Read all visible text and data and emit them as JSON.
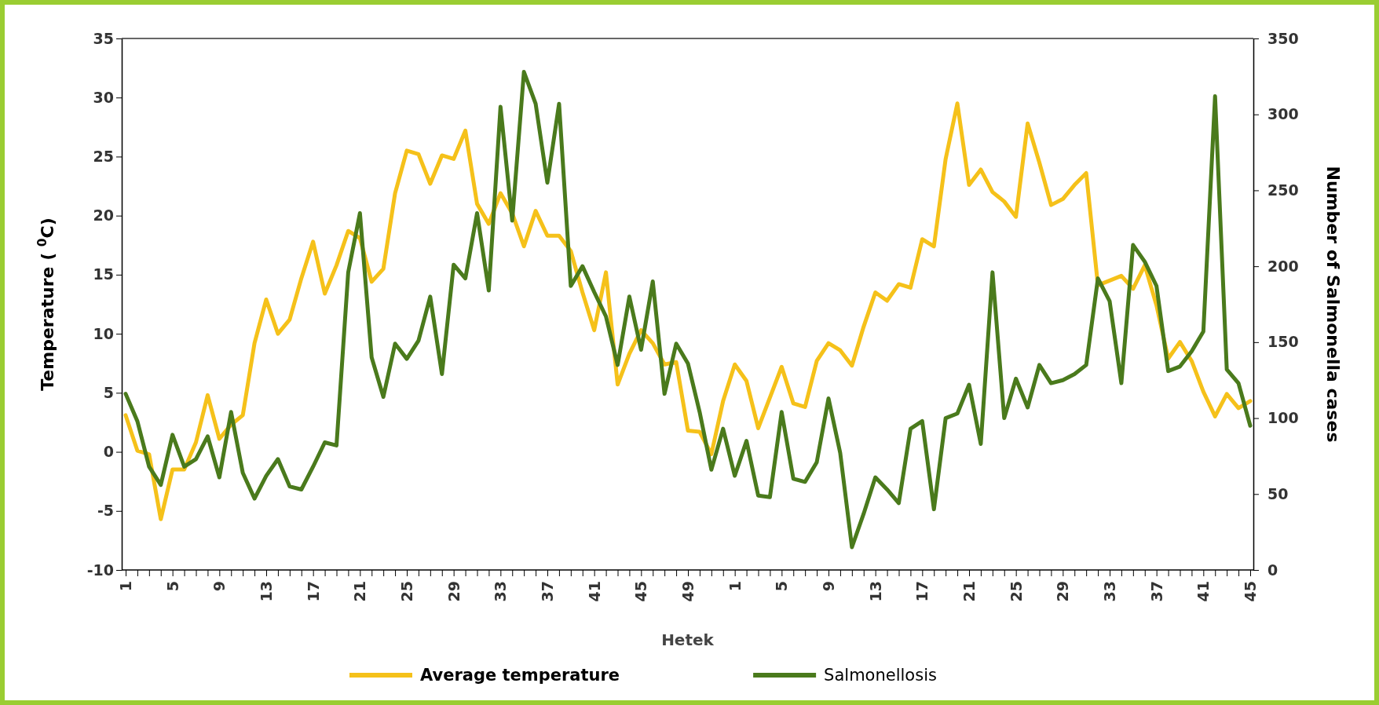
{
  "chart_data": {
    "type": "line",
    "xlabel": "Hetek",
    "ylabel": "Temperature ( $^{0}$C)",
    "y2label": "Number of Salmonella cases",
    "categories": [
      "1",
      null,
      null,
      null,
      "5",
      null,
      null,
      null,
      "9",
      null,
      null,
      null,
      "13",
      null,
      null,
      null,
      "17",
      null,
      null,
      null,
      "21",
      null,
      null,
      null,
      "25",
      null,
      null,
      null,
      "29",
      null,
      null,
      null,
      "33",
      null,
      null,
      null,
      "37",
      null,
      null,
      null,
      "41",
      null,
      null,
      null,
      "45",
      null,
      null,
      null,
      "49",
      null,
      null,
      null,
      "1",
      null,
      null,
      null,
      "5",
      null,
      null,
      null,
      "9",
      null,
      null,
      null,
      "13",
      null,
      null,
      null,
      "17",
      null,
      null,
      null,
      "21",
      null,
      null,
      null,
      "25",
      null,
      null,
      null,
      "29",
      null,
      null,
      null,
      "33",
      null,
      null,
      null,
      "37",
      null,
      null,
      null,
      "41",
      null,
      null,
      null,
      "45"
    ],
    "series": [
      {
        "name": "Average temperature",
        "color": "#f5c11a",
        "values": [
          3.1,
          0.1,
          -0.2,
          -5.7,
          -1.5,
          -1.5,
          0.8,
          4.8,
          1.1,
          2.3,
          3.1,
          9.2,
          12.9,
          10,
          11.2,
          14.7,
          17.8,
          13.4,
          15.8,
          18.7,
          18.1,
          14.4,
          15.5,
          21.9,
          25.5,
          25.2,
          22.7,
          25.1,
          24.8,
          27.2,
          21,
          19.3,
          21.9,
          20.2,
          17.4,
          20.4,
          18.3,
          18.3,
          17,
          13.5,
          10.3,
          15.2,
          5.7,
          8.3,
          10.3,
          9.2,
          7.4,
          7.6,
          1.8,
          1.7,
          -0.2,
          4.3,
          7.4,
          6,
          2,
          4.6,
          7.2,
          4.1,
          3.8,
          7.7,
          9.2,
          8.6,
          7.3,
          10.6,
          13.5,
          12.8,
          14.2,
          13.9,
          18,
          17.4,
          24.8,
          29.5,
          22.6,
          23.9,
          22,
          21.2,
          19.9,
          27.8,
          24.5,
          20.9,
          21.4,
          22.6,
          23.6,
          14.1,
          14.5,
          14.9,
          13.8,
          15.8,
          12.4,
          7.9,
          9.3,
          7.7,
          5.1,
          3,
          4.9,
          3.7,
          4.3
        ]
      },
      {
        "name": "Salmonellosis",
        "color": "#4a7a1c",
        "axis": "y2",
        "values": [
          116,
          98,
          68,
          56,
          89,
          68,
          73,
          88,
          61,
          104,
          64,
          47,
          62,
          73,
          55,
          53,
          68,
          84,
          82,
          196,
          235,
          140,
          114,
          149,
          139,
          151,
          180,
          129,
          201,
          192,
          235,
          184,
          305,
          230,
          328,
          307,
          255,
          307,
          187,
          200,
          183,
          167,
          135,
          180,
          145,
          190,
          116,
          149,
          136,
          104,
          66,
          93,
          62,
          85,
          49,
          48,
          104,
          60,
          58,
          71,
          113,
          77,
          15,
          37,
          61,
          53,
          44,
          93,
          98,
          40,
          100,
          103,
          122,
          83,
          196,
          100,
          126,
          107,
          135,
          123,
          125,
          129,
          135,
          192,
          177,
          123,
          214,
          203,
          187,
          131,
          134,
          144,
          157,
          312,
          132,
          123,
          95
        ]
      }
    ],
    "ylim": [
      -10,
      35
    ],
    "yticks": [
      -10,
      -5,
      0,
      5,
      10,
      15,
      20,
      25,
      30,
      35
    ],
    "y2lim": [
      0,
      350
    ],
    "y2ticks": [
      0,
      50,
      100,
      150,
      200,
      250,
      300,
      350
    ],
    "legend": "bottom",
    "grid": false,
    "marker": "none",
    "line_style": "solid"
  }
}
